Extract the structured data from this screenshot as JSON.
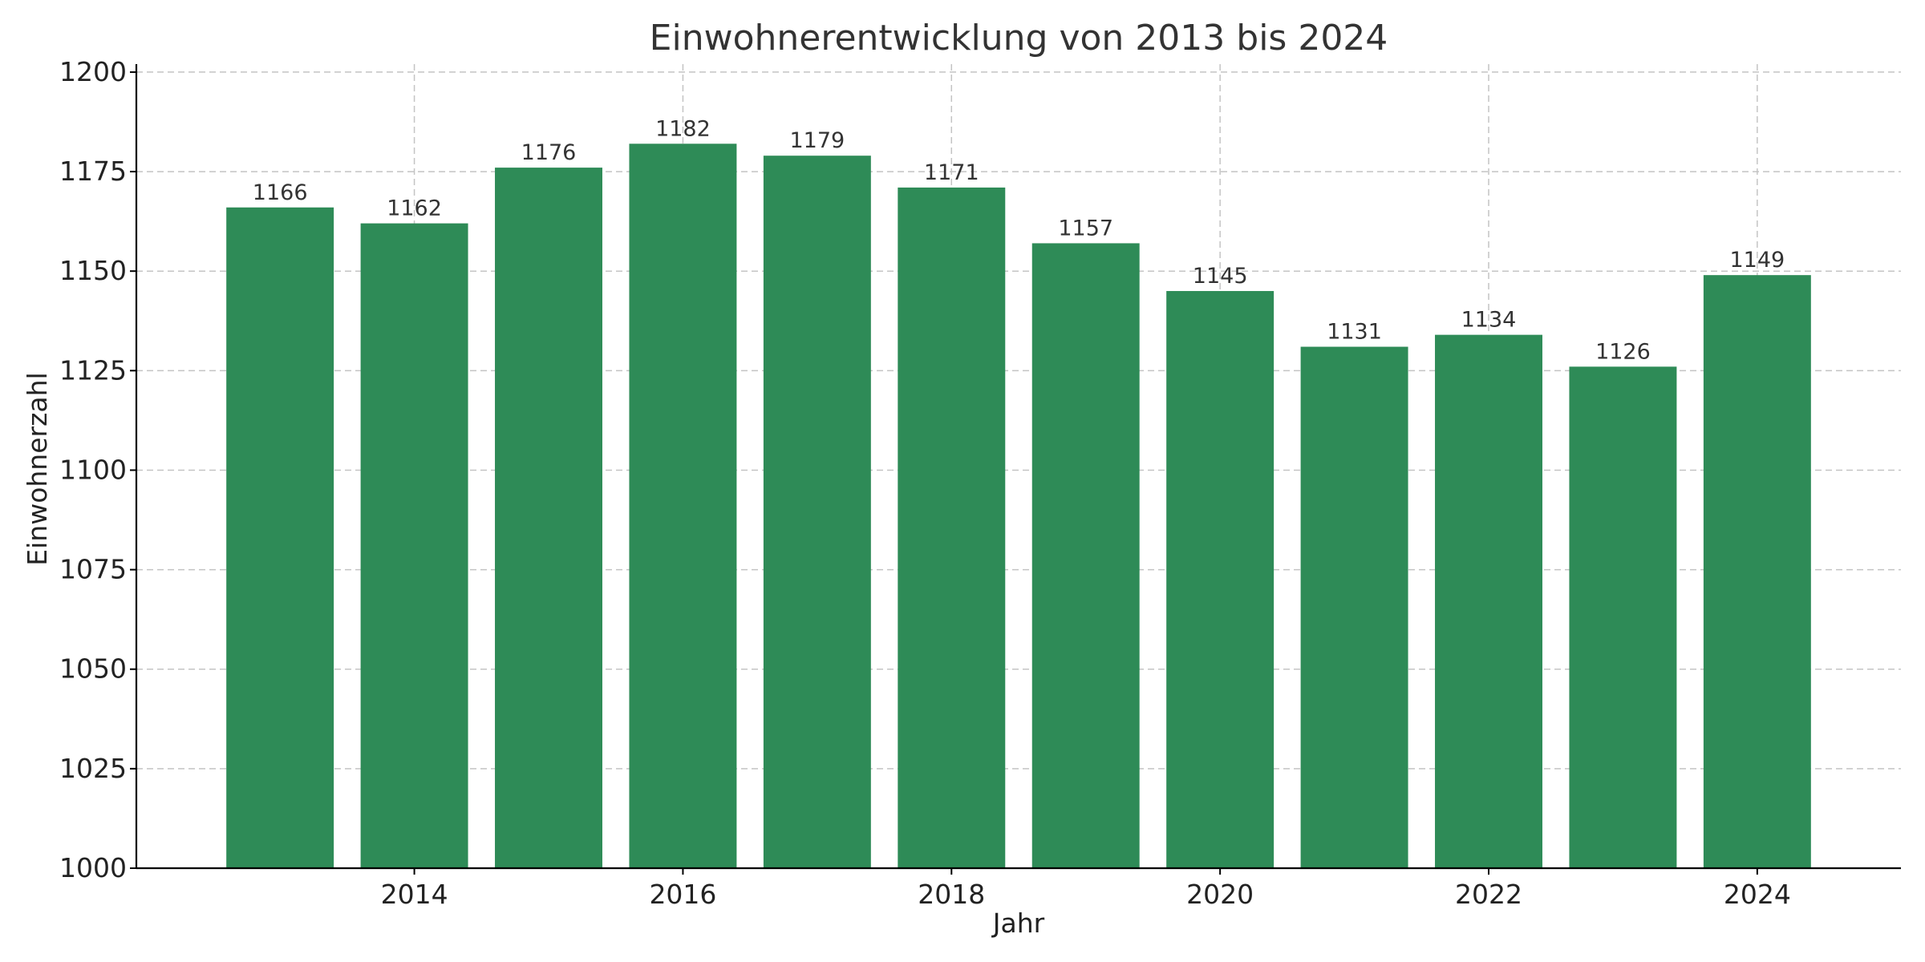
{
  "chart_data": {
    "type": "bar",
    "title": "Einwohnerentwicklung von 2013 bis 2024",
    "xlabel": "Jahr",
    "ylabel": "Einwohnerzahl",
    "categories": [
      2013,
      2014,
      2015,
      2016,
      2017,
      2018,
      2019,
      2020,
      2021,
      2022,
      2023,
      2024
    ],
    "values": [
      1166,
      1162,
      1176,
      1182,
      1179,
      1171,
      1157,
      1145,
      1131,
      1134,
      1126,
      1149
    ],
    "xticks": [
      2014,
      2016,
      2018,
      2020,
      2022,
      2024
    ],
    "xlim": [
      2011.93,
      2025.07
    ],
    "ylim": [
      1000,
      1202
    ],
    "yticks": [
      1000,
      1025,
      1050,
      1075,
      1100,
      1125,
      1150,
      1175,
      1200
    ],
    "bar_color": "#2e8b57",
    "data_labels": true,
    "grid": true
  }
}
